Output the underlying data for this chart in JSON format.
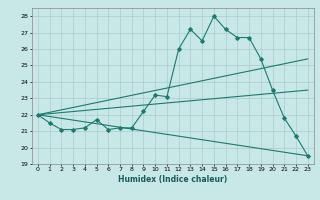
{
  "xlabel": "Humidex (Indice chaleur)",
  "ylabel": "",
  "xlim": [
    -0.5,
    23.5
  ],
  "ylim": [
    19,
    28.5
  ],
  "yticks": [
    19,
    20,
    21,
    22,
    23,
    24,
    25,
    26,
    27,
    28
  ],
  "xticks": [
    0,
    1,
    2,
    3,
    4,
    5,
    6,
    7,
    8,
    9,
    10,
    11,
    12,
    13,
    14,
    15,
    16,
    17,
    18,
    19,
    20,
    21,
    22,
    23
  ],
  "bg_color": "#c8e8e8",
  "grid_color": "#aacccc",
  "line_color": "#1a7a6e",
  "line1_x": [
    0,
    1,
    2,
    3,
    4,
    5,
    6,
    7,
    8,
    9,
    10,
    11,
    12,
    13,
    14,
    15,
    16,
    17,
    18,
    19,
    20,
    21,
    22,
    23
  ],
  "line1_y": [
    22.0,
    21.5,
    21.1,
    21.1,
    21.2,
    21.7,
    21.1,
    21.2,
    21.2,
    22.2,
    23.2,
    23.1,
    26.0,
    27.2,
    26.5,
    28.0,
    27.2,
    26.7,
    26.7,
    25.4,
    23.5,
    21.8,
    20.7,
    19.5
  ],
  "line2_x": [
    0,
    23
  ],
  "line2_y": [
    22.0,
    25.4
  ],
  "line3_x": [
    0,
    23
  ],
  "line3_y": [
    22.0,
    23.5
  ],
  "line4_x": [
    0,
    23
  ],
  "line4_y": [
    22.0,
    19.5
  ]
}
